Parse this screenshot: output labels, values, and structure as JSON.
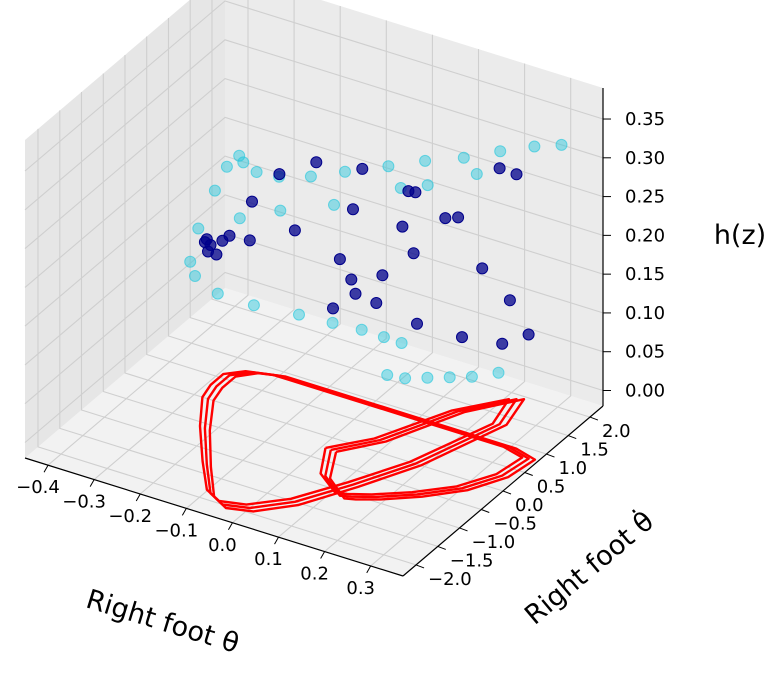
{
  "chart_data": {
    "type": "scatter-3d",
    "title": "",
    "xlabel": "Right foot θ",
    "ylabel": "Right foot θ̇",
    "zlabel": "h(z)",
    "xlim": [
      -0.45,
      0.37
    ],
    "ylim": [
      -2.3,
      2.3
    ],
    "zlim": [
      -0.02,
      0.39
    ],
    "x_ticks": [
      "−0.4",
      "−0.3",
      "−0.2",
      "−0.1",
      "0.0",
      "0.1",
      "0.2",
      "0.3"
    ],
    "y_ticks": [
      "−2.0",
      "−1.5",
      "−1.0",
      "−0.5",
      "0.0",
      "0.5",
      "1.0",
      "1.5",
      "2.0"
    ],
    "z_ticks": [
      "0.00",
      "0.05",
      "0.10",
      "0.15",
      "0.20",
      "0.25",
      "0.30",
      "0.35"
    ],
    "grid": true,
    "colors": {
      "dark_series": "#00008b",
      "light_series": "#22c6dc",
      "projection": "#ff0000",
      "pane": "#f2f2f2",
      "grid": "#cfcfcf"
    },
    "series": [
      {
        "color": "#00008b",
        "points": [
          [
            0.02,
            -0.2,
            0.16
          ],
          [
            0.05,
            0.0,
            0.175
          ],
          [
            0.08,
            0.3,
            0.19
          ],
          [
            0.11,
            0.7,
            0.205
          ],
          [
            0.15,
            1.3,
            0.23
          ],
          [
            0.22,
            1.9,
            0.27
          ],
          [
            0.24,
            1.3,
            0.31
          ],
          [
            0.18,
            0.0,
            0.33
          ],
          [
            0.12,
            -0.8,
            0.335
          ],
          [
            0.06,
            -1.5,
            0.33
          ],
          [
            0.0,
            -1.9,
            0.325
          ],
          [
            -0.05,
            -2.0,
            0.32
          ],
          [
            -0.09,
            -1.85,
            0.3
          ],
          [
            -0.15,
            -1.3,
            0.27
          ],
          [
            -0.22,
            -0.6,
            0.22
          ],
          [
            -0.27,
            0.0,
            0.17
          ],
          [
            -0.28,
            0.3,
            0.15
          ],
          [
            -0.28,
            0.6,
            0.16
          ],
          [
            -0.25,
            0.8,
            0.2
          ],
          [
            -0.2,
            0.9,
            0.24
          ],
          [
            -0.12,
            0.9,
            0.27
          ],
          [
            -0.02,
            0.9,
            0.28
          ],
          [
            0.08,
            0.9,
            0.27
          ],
          [
            0.16,
            0.9,
            0.25
          ],
          [
            0.24,
            0.9,
            0.2
          ],
          [
            0.3,
            0.9,
            0.17
          ],
          [
            0.35,
            0.8,
            0.14
          ],
          [
            0.34,
            0.3,
            0.15
          ],
          [
            0.3,
            -0.2,
            0.175
          ],
          [
            0.24,
            -0.6,
            0.2
          ],
          [
            0.18,
            -0.9,
            0.23
          ],
          [
            0.14,
            -1.05,
            0.26
          ],
          [
            0.12,
            -1.1,
            0.285
          ],
          [
            0.18,
            -0.3,
            0.3
          ]
        ]
      },
      {
        "color": "#22c6dc",
        "points": [
          [
            0.1,
            0.2,
            0.07
          ],
          [
            0.12,
            0.4,
            0.06
          ],
          [
            0.14,
            0.7,
            0.05
          ],
          [
            0.16,
            1.0,
            0.04
          ],
          [
            0.18,
            1.3,
            0.03
          ],
          [
            0.2,
            1.7,
            0.02
          ],
          [
            0.15,
            0.0,
            0.13
          ],
          [
            0.14,
            -0.3,
            0.15
          ],
          [
            0.12,
            -0.6,
            0.17
          ],
          [
            0.09,
            -0.95,
            0.19
          ],
          [
            0.05,
            -1.3,
            0.21
          ],
          [
            -0.01,
            -1.7,
            0.23
          ],
          [
            -0.06,
            -2.0,
            0.25
          ],
          [
            -0.1,
            -2.1,
            0.27
          ],
          [
            -0.12,
            -2.0,
            0.28
          ],
          [
            -0.14,
            -1.6,
            0.3
          ],
          [
            -0.17,
            -0.9,
            0.31
          ],
          [
            -0.21,
            -0.2,
            0.3
          ],
          [
            -0.24,
            0.4,
            0.28
          ],
          [
            -0.25,
            0.6,
            0.26
          ],
          [
            -0.24,
            0.8,
            0.24
          ],
          [
            -0.21,
            1.0,
            0.23
          ],
          [
            -0.16,
            1.2,
            0.23
          ],
          [
            -0.1,
            1.35,
            0.24
          ],
          [
            -0.02,
            1.5,
            0.255
          ],
          [
            0.05,
            1.6,
            0.27
          ],
          [
            0.12,
            1.75,
            0.28
          ],
          [
            0.18,
            1.95,
            0.29
          ],
          [
            0.24,
            2.1,
            0.3
          ],
          [
            0.28,
            2.3,
            0.3
          ],
          [
            0.2,
            1.2,
            0.3
          ],
          [
            0.15,
            0.6,
            0.305
          ],
          [
            0.12,
            0.3,
            0.31
          ],
          [
            0.06,
            -0.6,
            0.32
          ],
          [
            0.0,
            -1.2,
            0.33
          ],
          [
            -0.05,
            -1.6,
            0.33
          ]
        ]
      }
    ],
    "projection_curve": {
      "color": "#ff0000",
      "points": [
        [
          0.02,
          -0.25
        ],
        [
          0.05,
          0.0
        ],
        [
          0.08,
          0.25
        ],
        [
          0.11,
          0.7
        ],
        [
          0.15,
          1.3
        ],
        [
          0.22,
          1.9
        ],
        [
          0.24,
          1.3
        ],
        [
          0.18,
          0.0
        ],
        [
          0.12,
          -0.8
        ],
        [
          0.06,
          -1.5
        ],
        [
          0.0,
          -1.9
        ],
        [
          -0.05,
          -2.0
        ],
        [
          -0.09,
          -1.85
        ],
        [
          -0.15,
          -1.3
        ],
        [
          -0.22,
          -0.6
        ],
        [
          -0.27,
          0.0
        ],
        [
          -0.28,
          0.3
        ],
        [
          -0.28,
          0.6
        ],
        [
          -0.25,
          0.8
        ],
        [
          -0.2,
          0.9
        ],
        [
          -0.12,
          0.9
        ],
        [
          -0.02,
          0.9
        ],
        [
          0.08,
          0.9
        ],
        [
          0.16,
          0.9
        ],
        [
          0.24,
          0.9
        ],
        [
          0.3,
          0.9
        ],
        [
          0.35,
          0.8
        ],
        [
          0.34,
          0.3
        ],
        [
          0.3,
          -0.2
        ],
        [
          0.24,
          -0.6
        ],
        [
          0.18,
          -0.9
        ],
        [
          0.14,
          -1.05
        ],
        [
          0.12,
          -1.1
        ],
        [
          0.06,
          -0.8
        ],
        [
          0.02,
          -0.25
        ]
      ]
    }
  }
}
